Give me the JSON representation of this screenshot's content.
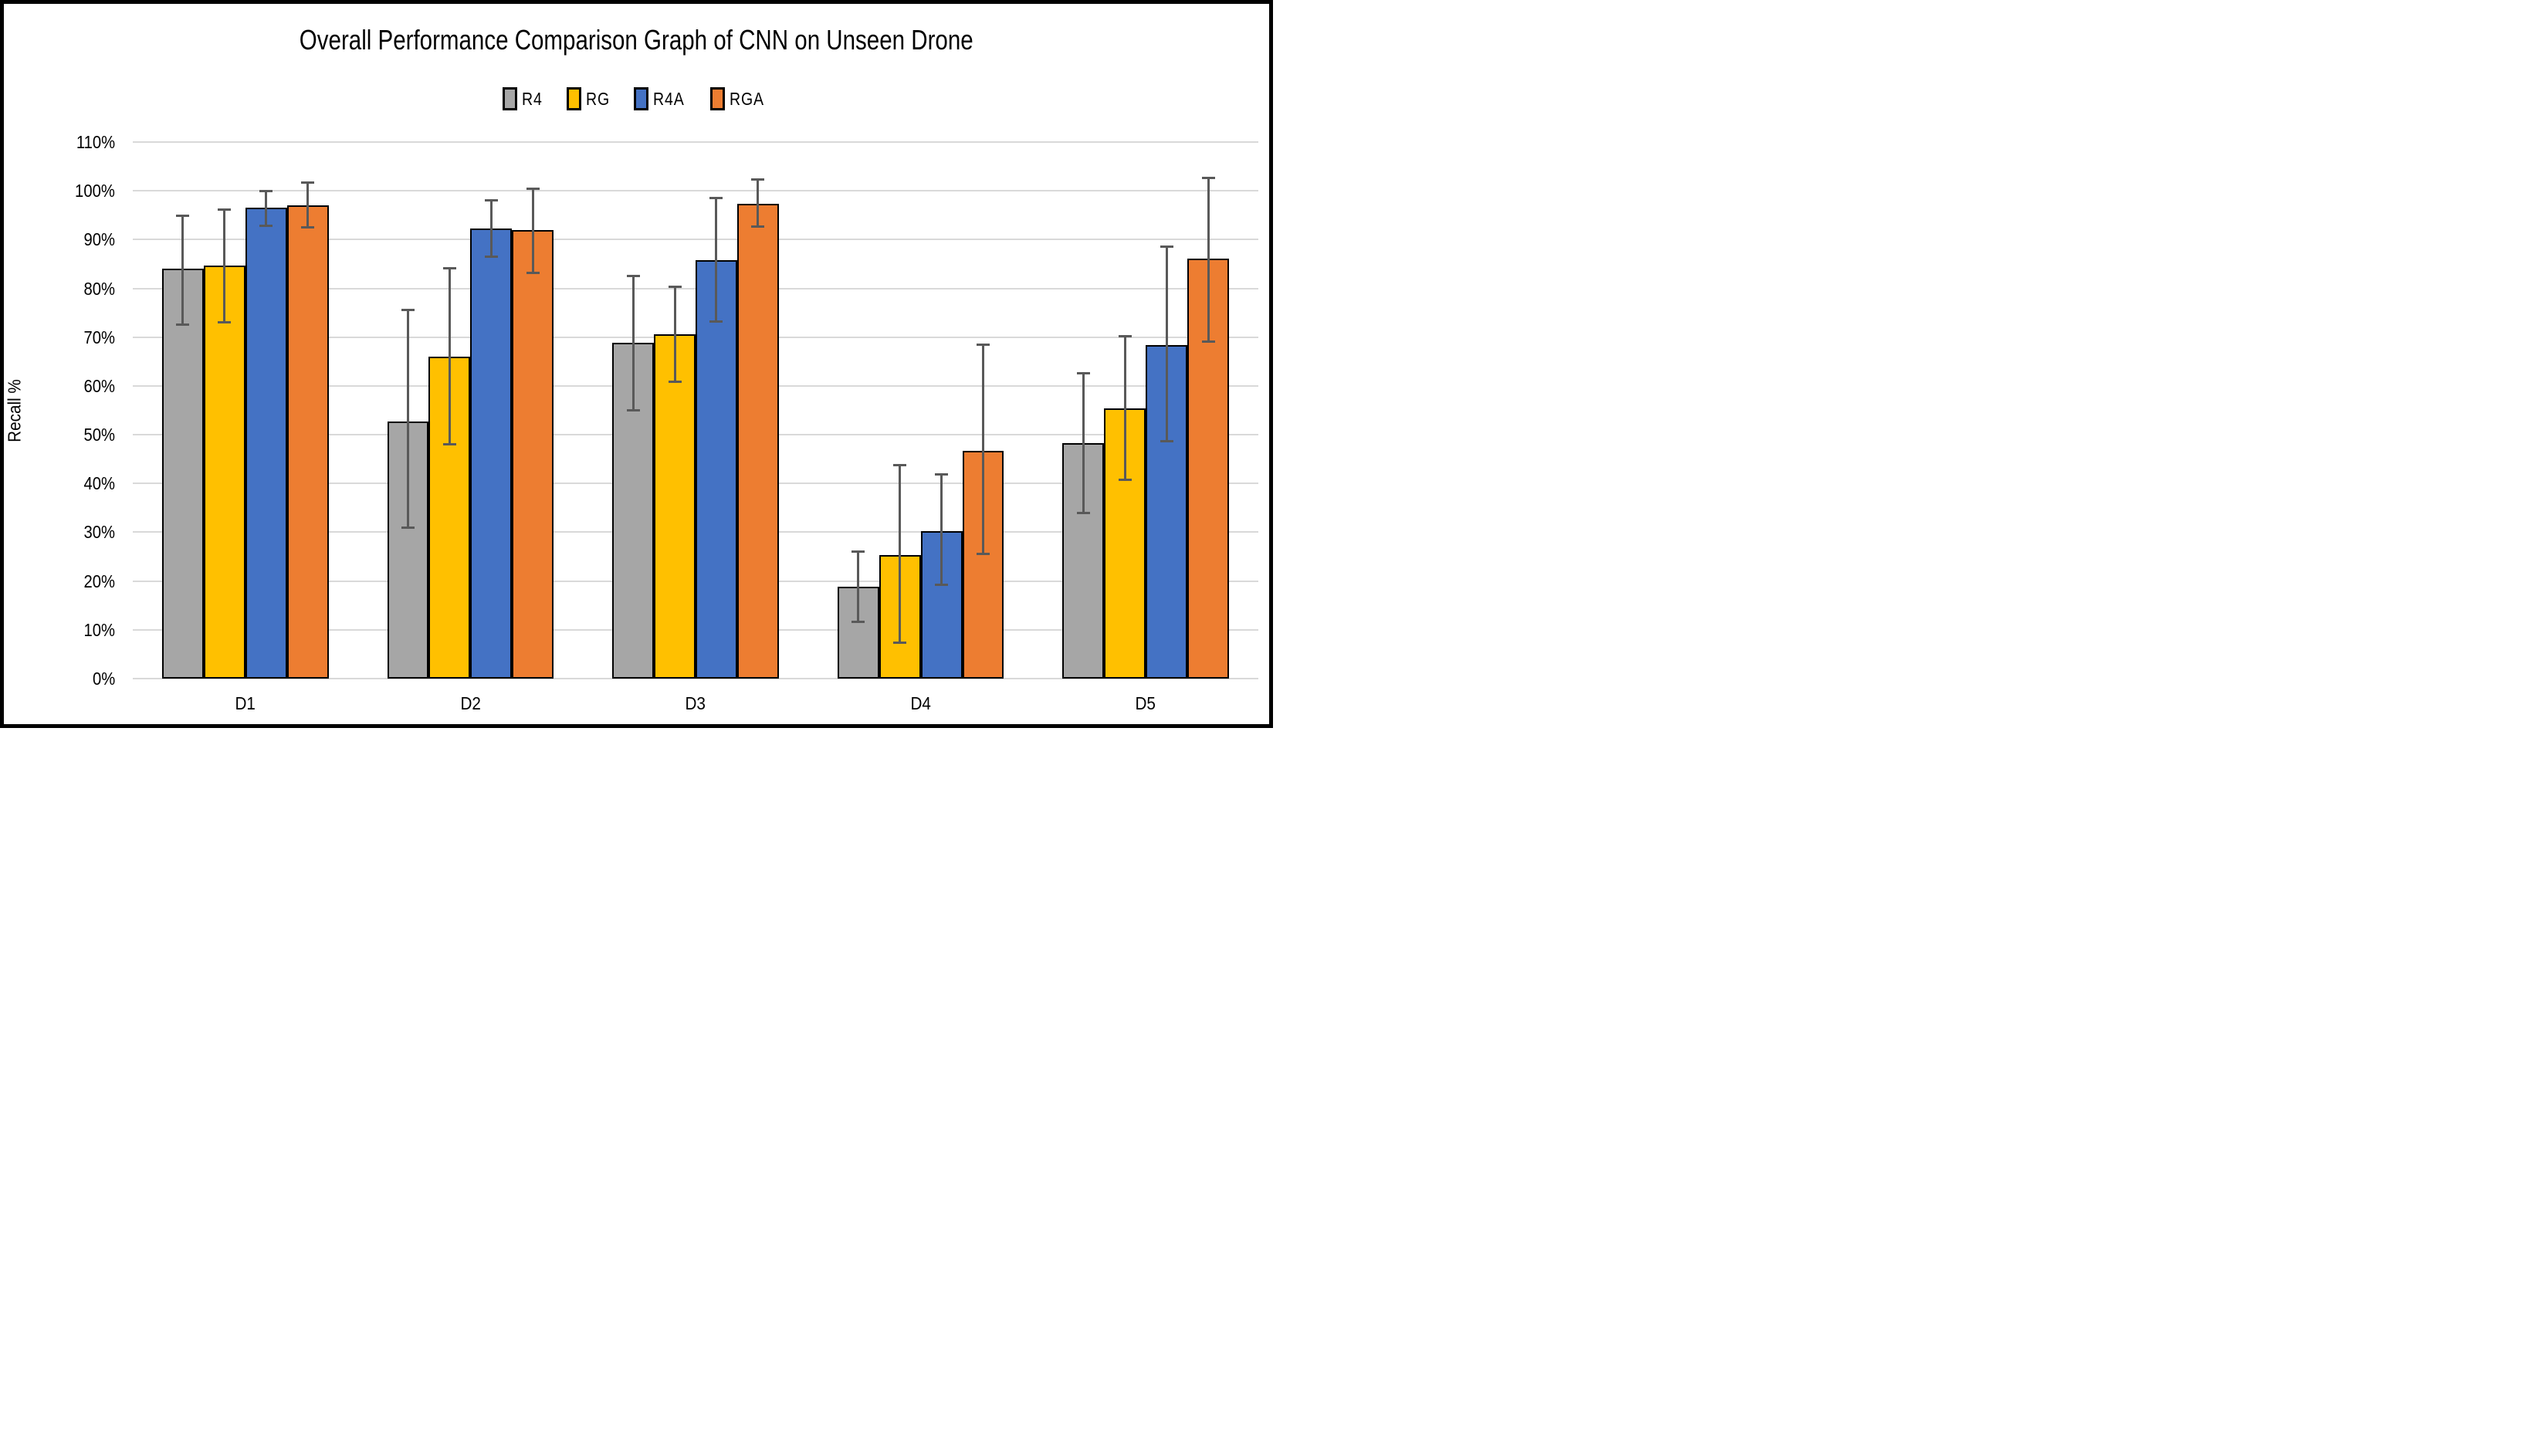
{
  "chart_data": {
    "type": "bar",
    "title": "Overall Performance Comparison Graph of CNN on Unseen Drone",
    "xlabel": "",
    "ylabel": "Recall %",
    "categories": [
      "D1",
      "D2",
      "D3",
      "D4",
      "D5"
    ],
    "ylim": [
      0,
      110
    ],
    "y_tick_labels": [
      "0%",
      "10%",
      "20%",
      "30%",
      "40%",
      "50%",
      "60%",
      "70%",
      "80%",
      "90%",
      "100%",
      "110%"
    ],
    "grid": true,
    "legend_position": "top",
    "bar_border_color": "#000000",
    "gridline_color": "#D9D9D9",
    "error_bar_color": "#595959",
    "series": [
      {
        "name": "R4",
        "color": "#A6A6A6",
        "values": [
          84.0,
          52.7,
          68.8,
          18.9,
          48.3
        ],
        "error_low": [
          72.5,
          31.0,
          55.0,
          11.6,
          34.0
        ],
        "error_high": [
          94.9,
          75.5,
          82.6,
          26.1,
          62.6
        ]
      },
      {
        "name": "RG",
        "color": "#FFC000",
        "values": [
          84.7,
          66.0,
          70.6,
          25.4,
          55.4
        ],
        "error_low": [
          73.0,
          48.0,
          60.8,
          7.4,
          40.8
        ],
        "error_high": [
          96.2,
          84.2,
          80.4,
          43.8,
          70.2
        ]
      },
      {
        "name": "R4A",
        "color": "#4472C4",
        "values": [
          96.5,
          92.3,
          85.8,
          30.3,
          68.4
        ],
        "error_low": [
          92.8,
          86.5,
          73.2,
          19.3,
          48.7
        ],
        "error_high": [
          100.0,
          98.0,
          98.6,
          41.8,
          88.5
        ]
      },
      {
        "name": "RGA",
        "color": "#ED7D31",
        "values": [
          97.0,
          91.9,
          97.4,
          46.7,
          86.1
        ],
        "error_low": [
          92.5,
          83.2,
          92.6,
          25.6,
          69.1
        ],
        "error_high": [
          101.7,
          100.5,
          102.4,
          68.5,
          102.6
        ]
      }
    ]
  }
}
